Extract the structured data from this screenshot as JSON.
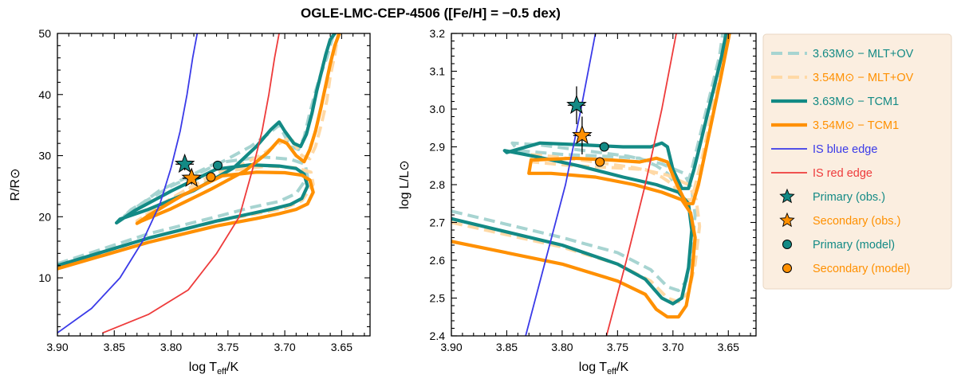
{
  "title": "OGLE-LMC-CEP-4506 ([Fe/H] = −0.5 dex)",
  "colors": {
    "teal": "#138a85",
    "teal_light": "#a7d4d1",
    "orange": "#ff9000",
    "orange_light": "#ffd9a6",
    "blue": "#3a3ae8",
    "red": "#ee3b3b",
    "legend_bg": "#fbeee0"
  },
  "legend": [
    {
      "key": "tcm_mlt_p",
      "label": "3.63M⊙ − MLT+OV",
      "color": "#138a85",
      "marker": "dashed-light"
    },
    {
      "key": "tcm_mlt_s",
      "label": "3.54M⊙ − MLT+OV",
      "color": "#ff9000",
      "marker": "dashed-light"
    },
    {
      "key": "tcm1_p",
      "label": "3.63M⊙ − TCM1",
      "color": "#138a85",
      "marker": "thick"
    },
    {
      "key": "tcm1_s",
      "label": "3.54M⊙ − TCM1",
      "color": "#ff9000",
      "marker": "thick"
    },
    {
      "key": "is_blue",
      "label": "IS blue edge",
      "color": "#3a3ae8",
      "marker": "thin"
    },
    {
      "key": "is_red",
      "label": "IS red edge",
      "color": "#ee3b3b",
      "marker": "thin"
    },
    {
      "key": "prim_obs",
      "label": "Primary (obs.)",
      "color": "#138a85",
      "marker": "star"
    },
    {
      "key": "sec_obs",
      "label": "Secondary (obs.)",
      "color": "#ff9000",
      "marker": "star"
    },
    {
      "key": "prim_mod",
      "label": "Primary (model)",
      "color": "#138a85",
      "marker": "circle"
    },
    {
      "key": "sec_mod",
      "label": "Secondary (model)",
      "color": "#ff9000",
      "marker": "circle"
    }
  ],
  "chart_data": [
    {
      "type": "line",
      "panel": "left",
      "xlabel": "log T_eff/K",
      "ylabel": "R/R⊙",
      "xlim": [
        3.9,
        3.625
      ],
      "ylim": [
        0.5,
        50
      ],
      "xticks": [
        3.9,
        3.85,
        3.8,
        3.75,
        3.7,
        3.65
      ],
      "yticks": [
        10,
        20,
        30,
        40,
        50
      ],
      "series": [
        {
          "name": "3.63M⊙ − MLT+OV",
          "style": "dashed-light",
          "color": "#a7d4d1",
          "x": [
            3.9,
            3.82,
            3.76,
            3.73,
            3.705,
            3.69,
            3.68,
            3.682,
            3.695,
            3.72,
            3.76,
            3.81,
            3.842,
            3.835,
            3.8,
            3.76,
            3.73,
            3.715,
            3.705,
            3.695,
            3.688,
            3.683,
            3.678,
            3.673,
            3.668,
            3.663,
            3.66,
            3.657
          ],
          "y": [
            12.3,
            17.2,
            20.0,
            21.5,
            22.5,
            23.8,
            26.5,
            28.6,
            29.4,
            29.8,
            28.8,
            24.3,
            20.0,
            21.2,
            25.0,
            28.5,
            31.5,
            33.5,
            35.0,
            31.5,
            31.0,
            33.0,
            37.0,
            40.5,
            43.5,
            46.0,
            48.0,
            50.0
          ]
        },
        {
          "name": "3.54M⊙ − MLT+OV",
          "style": "dashed-light",
          "color": "#ffd9a6",
          "x": [
            3.9,
            3.82,
            3.76,
            3.725,
            3.7,
            3.685,
            3.675,
            3.677,
            3.69,
            3.715,
            3.76,
            3.8,
            3.83,
            3.822,
            3.79,
            3.75,
            3.72,
            3.705,
            3.695,
            3.685,
            3.678,
            3.673,
            3.668,
            3.663,
            3.66,
            3.656,
            3.653
          ],
          "y": [
            11.8,
            16.5,
            19.2,
            20.5,
            21.4,
            22.6,
            25.3,
            27.3,
            28.0,
            28.3,
            27.3,
            23.0,
            19.3,
            20.3,
            24.0,
            27.4,
            30.2,
            32.0,
            33.0,
            30.0,
            29.5,
            31.5,
            35.0,
            39.0,
            43.0,
            46.5,
            50.0
          ]
        },
        {
          "name": "3.63M⊙ − TCM1",
          "style": "thick",
          "color": "#138a85",
          "x": [
            3.9,
            3.82,
            3.76,
            3.73,
            3.71,
            3.695,
            3.685,
            3.68,
            3.683,
            3.69,
            3.705,
            3.73,
            3.76,
            3.8,
            3.832,
            3.848,
            3.845,
            3.82,
            3.78,
            3.745,
            3.725,
            3.712,
            3.705,
            3.7,
            3.692,
            3.686,
            3.681,
            3.676,
            3.672,
            3.668,
            3.664,
            3.66,
            3.656
          ],
          "y": [
            12.0,
            16.5,
            19.3,
            20.5,
            21.3,
            22.0,
            23.0,
            25.0,
            27.0,
            27.9,
            28.3,
            28.5,
            27.8,
            24.2,
            21.0,
            19.0,
            19.6,
            21.2,
            24.3,
            28.0,
            31.5,
            34.3,
            35.5,
            34.0,
            32.0,
            31.5,
            33.5,
            37.0,
            40.5,
            43.5,
            46.5,
            49.0,
            50.0
          ]
        },
        {
          "name": "3.54M⊙ − TCM1",
          "style": "thick",
          "color": "#ff9000",
          "x": [
            3.9,
            3.82,
            3.76,
            3.725,
            3.705,
            3.69,
            3.68,
            3.675,
            3.678,
            3.685,
            3.7,
            3.725,
            3.755,
            3.79,
            3.82,
            3.83,
            3.826,
            3.8,
            3.765,
            3.735,
            3.715,
            3.705,
            3.698,
            3.69,
            3.683,
            3.678,
            3.673,
            3.668,
            3.664,
            3.66,
            3.656,
            3.652
          ],
          "y": [
            11.5,
            15.8,
            18.5,
            19.7,
            20.5,
            21.2,
            22.1,
            24.0,
            26.0,
            26.8,
            27.2,
            27.3,
            26.7,
            23.5,
            20.2,
            18.9,
            19.3,
            21.3,
            24.5,
            27.5,
            30.5,
            32.6,
            32.0,
            30.0,
            29.0,
            31.0,
            34.0,
            38.0,
            41.5,
            45.0,
            48.0,
            50.0
          ]
        },
        {
          "name": "IS blue edge",
          "style": "thin",
          "color": "#3a3ae8",
          "x": [
            3.9,
            3.87,
            3.845,
            3.825,
            3.81,
            3.8,
            3.792,
            3.786,
            3.781,
            3.777
          ],
          "y": [
            1.0,
            5.0,
            10.0,
            16.0,
            22.0,
            28.0,
            34.0,
            40.0,
            46.0,
            50.0
          ]
        },
        {
          "name": "IS red edge",
          "style": "thin",
          "color": "#ee3b3b",
          "x": [
            3.86,
            3.82,
            3.785,
            3.76,
            3.74,
            3.728,
            3.72,
            3.714,
            3.709,
            3.705
          ],
          "y": [
            1.0,
            4.0,
            8.0,
            14.0,
            20.0,
            28.0,
            34.0,
            40.0,
            46.0,
            50.0
          ]
        }
      ],
      "points": [
        {
          "name": "Primary (obs.)",
          "marker": "star",
          "color": "#138a85",
          "x": 3.788,
          "y": 28.6,
          "xerr": 0.008,
          "yerr": 1.0
        },
        {
          "name": "Secondary (obs.)",
          "marker": "star",
          "color": "#ff9000",
          "x": 3.782,
          "y": 26.3,
          "xerr": 0.008,
          "yerr": 1.0
        },
        {
          "name": "Primary (model)",
          "marker": "circle",
          "color": "#138a85",
          "x": 3.759,
          "y": 28.4
        },
        {
          "name": "Secondary (model)",
          "marker": "circle",
          "color": "#ff9000",
          "x": 3.765,
          "y": 26.5
        }
      ]
    },
    {
      "type": "line",
      "panel": "right",
      "xlabel": "log T_eff/K",
      "ylabel": "log L/L⊙",
      "xlim": [
        3.9,
        3.625
      ],
      "ylim": [
        2.4,
        3.2
      ],
      "xticks": [
        3.9,
        3.85,
        3.8,
        3.75,
        3.7,
        3.65
      ],
      "yticks": [
        2.4,
        2.5,
        2.6,
        2.7,
        2.8,
        2.9,
        3.0,
        3.1,
        3.2
      ],
      "series": [
        {
          "name": "3.63M⊙ − MLT+OV",
          "style": "dashed-light",
          "color": "#a7d4d1",
          "x": [
            3.9,
            3.8,
            3.75,
            3.72,
            3.705,
            3.695,
            3.688,
            3.683,
            3.68,
            3.683,
            3.69,
            3.71,
            3.74,
            3.78,
            3.82,
            3.845,
            3.84,
            3.8,
            3.76,
            3.73,
            3.715,
            3.705,
            3.695,
            3.688,
            3.683,
            3.678,
            3.673,
            3.668,
            3.663,
            3.658,
            3.655
          ],
          "y": [
            2.73,
            2.66,
            2.62,
            2.575,
            2.53,
            2.52,
            2.545,
            2.62,
            2.72,
            2.79,
            2.83,
            2.855,
            2.875,
            2.89,
            2.905,
            2.91,
            2.89,
            2.88,
            2.875,
            2.87,
            2.85,
            2.83,
            2.79,
            2.79,
            2.84,
            2.9,
            2.96,
            3.02,
            3.08,
            3.14,
            3.2
          ]
        },
        {
          "name": "3.54M⊙ − MLT+OV",
          "style": "dashed-light",
          "color": "#ffd9a6",
          "x": [
            3.9,
            3.8,
            3.75,
            3.72,
            3.705,
            3.695,
            3.686,
            3.68,
            3.676,
            3.679,
            3.686,
            3.705,
            3.735,
            3.77,
            3.81,
            3.83,
            3.826,
            3.79,
            3.755,
            3.725,
            3.71,
            3.7,
            3.69,
            3.683,
            3.678,
            3.673,
            3.668,
            3.663,
            3.658,
            3.654,
            3.651
          ],
          "y": [
            2.7,
            2.635,
            2.59,
            2.545,
            2.5,
            2.49,
            2.515,
            2.59,
            2.69,
            2.76,
            2.8,
            2.825,
            2.845,
            2.86,
            2.875,
            2.88,
            2.86,
            2.85,
            2.845,
            2.84,
            2.82,
            2.8,
            2.76,
            2.76,
            2.82,
            2.88,
            2.95,
            3.02,
            3.09,
            3.15,
            3.2
          ]
        },
        {
          "name": "3.63M⊙ − TCM1",
          "style": "thick",
          "color": "#138a85",
          "x": [
            3.9,
            3.8,
            3.75,
            3.725,
            3.71,
            3.7,
            3.692,
            3.686,
            3.683,
            3.686,
            3.695,
            3.715,
            3.745,
            3.785,
            3.825,
            3.852,
            3.85,
            3.82,
            3.78,
            3.745,
            3.72,
            3.71,
            3.705,
            3.7,
            3.692,
            3.686,
            3.681,
            3.676,
            3.671,
            3.666,
            3.661,
            3.656,
            3.652
          ],
          "y": [
            2.71,
            2.64,
            2.59,
            2.55,
            2.5,
            2.485,
            2.5,
            2.58,
            2.68,
            2.75,
            2.78,
            2.8,
            2.82,
            2.85,
            2.875,
            2.89,
            2.885,
            2.91,
            2.905,
            2.9,
            2.9,
            2.91,
            2.9,
            2.84,
            2.79,
            2.79,
            2.84,
            2.9,
            2.96,
            3.02,
            3.08,
            3.14,
            3.2
          ]
        },
        {
          "name": "3.54M⊙ − TCM1",
          "style": "thick",
          "color": "#ff9000",
          "x": [
            3.9,
            3.8,
            3.75,
            3.725,
            3.715,
            3.705,
            3.695,
            3.688,
            3.683,
            3.68,
            3.684,
            3.692,
            3.71,
            3.735,
            3.77,
            3.81,
            3.83,
            3.828,
            3.79,
            3.755,
            3.73,
            3.715,
            3.705,
            3.698,
            3.688,
            3.682,
            3.677,
            3.672,
            3.667,
            3.662,
            3.657,
            3.653,
            3.649
          ],
          "y": [
            2.65,
            2.59,
            2.545,
            2.51,
            2.47,
            2.45,
            2.45,
            2.48,
            2.56,
            2.66,
            2.725,
            2.76,
            2.78,
            2.8,
            2.82,
            2.83,
            2.83,
            2.865,
            2.87,
            2.865,
            2.86,
            2.87,
            2.86,
            2.81,
            2.75,
            2.75,
            2.8,
            2.87,
            2.94,
            3.01,
            3.08,
            3.14,
            3.2
          ]
        },
        {
          "name": "IS blue edge",
          "style": "thin",
          "color": "#3a3ae8",
          "x": [
            3.833,
            3.815,
            3.797,
            3.783,
            3.77
          ],
          "y": [
            2.4,
            2.6,
            2.8,
            3.0,
            3.2
          ]
        },
        {
          "name": "IS red edge",
          "style": "thin",
          "color": "#ee3b3b",
          "x": [
            3.76,
            3.742,
            3.725,
            3.71,
            3.697
          ],
          "y": [
            2.4,
            2.6,
            2.8,
            3.0,
            3.2
          ]
        }
      ],
      "points": [
        {
          "name": "Primary (obs.)",
          "marker": "star",
          "color": "#138a85",
          "x": 3.787,
          "y": 3.01,
          "xerr": 0.008,
          "yerr": 0.05
        },
        {
          "name": "Secondary (obs.)",
          "marker": "star",
          "color": "#ff9000",
          "x": 3.782,
          "y": 2.93,
          "xerr": 0.008,
          "yerr": 0.05
        },
        {
          "name": "Primary (model)",
          "marker": "circle",
          "color": "#138a85",
          "x": 3.762,
          "y": 2.9
        },
        {
          "name": "Secondary (model)",
          "marker": "circle",
          "color": "#ff9000",
          "x": 3.766,
          "y": 2.86
        }
      ]
    }
  ]
}
